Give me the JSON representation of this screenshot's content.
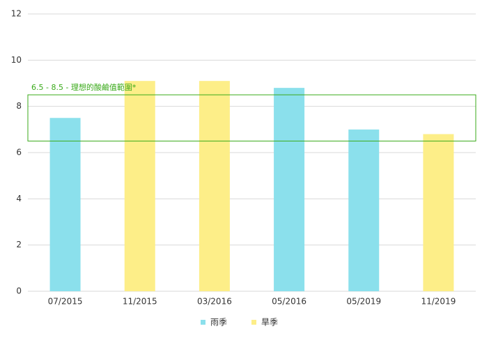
{
  "chart_data": {
    "type": "bar",
    "categories": [
      "07/2015",
      "11/2015",
      "03/2016",
      "05/2016",
      "05/2019",
      "11/2019"
    ],
    "series": [
      {
        "name": "雨季",
        "color": "#8be0ec",
        "values": [
          7.5,
          null,
          null,
          8.8,
          7.0,
          null
        ]
      },
      {
        "name": "旱季",
        "color": "#fdee88",
        "values": [
          null,
          9.1,
          9.1,
          null,
          null,
          6.8
        ]
      }
    ],
    "ylim": [
      0,
      12
    ],
    "yticks": [
      0,
      2,
      4,
      6,
      8,
      10,
      12
    ],
    "grid": true,
    "annotation": {
      "text": "6.5 - 8.5 - 理想的酸鹼值範圍*",
      "range": [
        6.5,
        8.5
      ],
      "color": "#3aaa1a"
    },
    "legend": "bottom"
  }
}
